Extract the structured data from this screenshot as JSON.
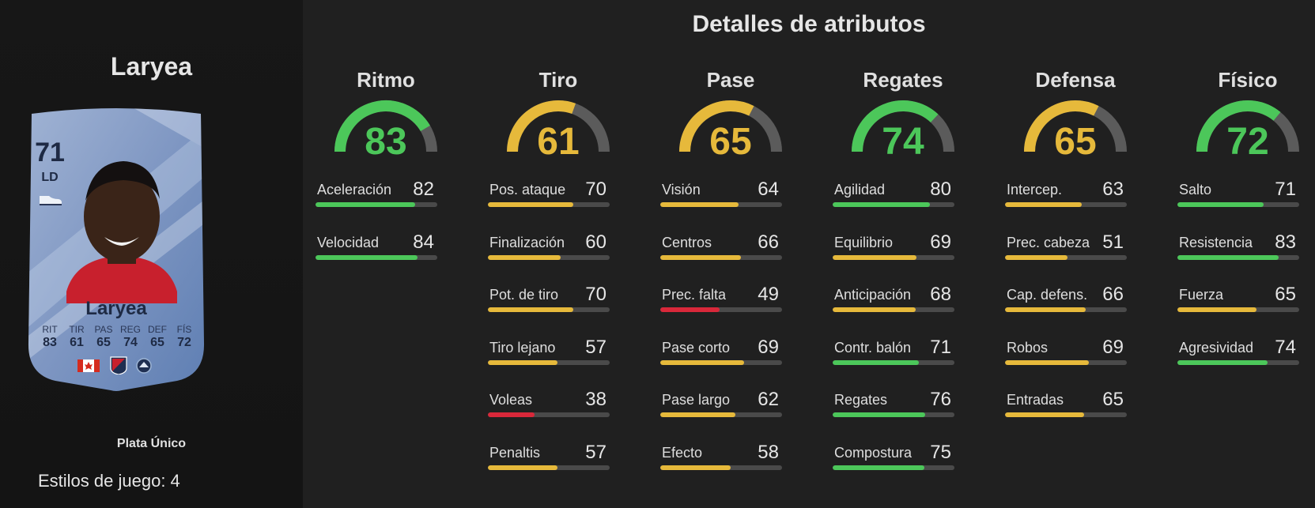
{
  "player": {
    "name": "Laryea",
    "card": {
      "overall": "71",
      "position": "LD",
      "name": "Laryea",
      "stat_labels": [
        "RIT",
        "TIR",
        "PAS",
        "REG",
        "DEF",
        "FÍS"
      ],
      "stat_values": [
        "83",
        "61",
        "65",
        "74",
        "65",
        "72"
      ]
    },
    "rarity": "Plata Único",
    "playstyles": "Estilos de juego: 4"
  },
  "icons": [
    "boot-icon",
    "canada-flag-icon",
    "mls-badge-icon",
    "vancouver-crest-icon"
  ],
  "colors": {
    "green": "#4cc75a",
    "yellow": "#e6b93b",
    "red": "#d9283a",
    "track": "#4a4a4a"
  },
  "details_title": "Detalles de atributos",
  "categories": [
    {
      "title": "Ritmo",
      "value": 83,
      "color": "green",
      "attrs": [
        {
          "name": "Aceleración",
          "value": 82,
          "color": "green"
        },
        {
          "name": "Velocidad",
          "value": 84,
          "color": "green"
        }
      ]
    },
    {
      "title": "Tiro",
      "value": 61,
      "color": "yellow",
      "attrs": [
        {
          "name": "Pos. ataque",
          "value": 70,
          "color": "yellow"
        },
        {
          "name": "Finalización",
          "value": 60,
          "color": "yellow"
        },
        {
          "name": "Pot. de tiro",
          "value": 70,
          "color": "yellow"
        },
        {
          "name": "Tiro lejano",
          "value": 57,
          "color": "yellow"
        },
        {
          "name": "Voleas",
          "value": 38,
          "color": "red"
        },
        {
          "name": "Penaltis",
          "value": 57,
          "color": "yellow"
        }
      ]
    },
    {
      "title": "Pase",
      "value": 65,
      "color": "yellow",
      "attrs": [
        {
          "name": "Visión",
          "value": 64,
          "color": "yellow"
        },
        {
          "name": "Centros",
          "value": 66,
          "color": "yellow"
        },
        {
          "name": "Prec. falta",
          "value": 49,
          "color": "red"
        },
        {
          "name": "Pase corto",
          "value": 69,
          "color": "yellow"
        },
        {
          "name": "Pase largo",
          "value": 62,
          "color": "yellow"
        },
        {
          "name": "Efecto",
          "value": 58,
          "color": "yellow"
        }
      ]
    },
    {
      "title": "Regates",
      "value": 74,
      "color": "green",
      "attrs": [
        {
          "name": "Agilidad",
          "value": 80,
          "color": "green"
        },
        {
          "name": "Equilibrio",
          "value": 69,
          "color": "yellow"
        },
        {
          "name": "Anticipación",
          "value": 68,
          "color": "yellow"
        },
        {
          "name": "Contr. balón",
          "value": 71,
          "color": "green"
        },
        {
          "name": "Regates",
          "value": 76,
          "color": "green"
        },
        {
          "name": "Compostura",
          "value": 75,
          "color": "green"
        }
      ]
    },
    {
      "title": "Defensa",
      "value": 65,
      "color": "yellow",
      "attrs": [
        {
          "name": "Intercep.",
          "value": 63,
          "color": "yellow"
        },
        {
          "name": "Prec. cabeza",
          "value": 51,
          "color": "yellow"
        },
        {
          "name": "Cap. defens.",
          "value": 66,
          "color": "yellow"
        },
        {
          "name": "Robos",
          "value": 69,
          "color": "yellow"
        },
        {
          "name": "Entradas",
          "value": 65,
          "color": "yellow"
        }
      ]
    },
    {
      "title": "Físico",
      "value": 72,
      "color": "green",
      "attrs": [
        {
          "name": "Salto",
          "value": 71,
          "color": "green"
        },
        {
          "name": "Resistencia",
          "value": 83,
          "color": "green"
        },
        {
          "name": "Fuerza",
          "value": 65,
          "color": "yellow"
        },
        {
          "name": "Agresividad",
          "value": 74,
          "color": "green"
        }
      ]
    }
  ]
}
